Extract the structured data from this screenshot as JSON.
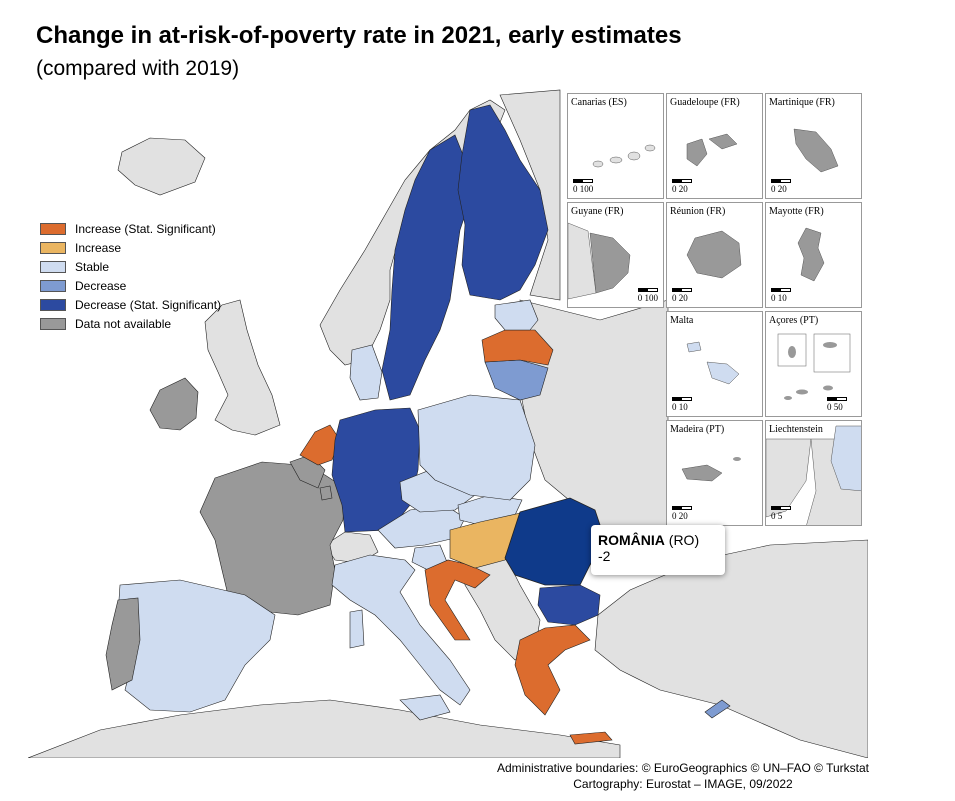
{
  "header": {
    "title": "Change in at-risk-of-poverty rate in 2021, early estimates",
    "subtitle": "(compared with 2019)"
  },
  "colors": {
    "sea": "#ffffff",
    "non_eu_land": "#e1e1e1",
    "increase_sig": "#dc6c2e",
    "increase": "#eab561",
    "stable": "#cfdcf0",
    "decrease": "#7e9bd1",
    "decrease_sig": "#2c4aa0",
    "highlight": "#0f3a8a",
    "not_available": "#999999",
    "border": "#222222"
  },
  "legend": {
    "items": [
      {
        "label": "Increase (Stat. Significant)",
        "color": "#dc6c2e"
      },
      {
        "label": "Increase",
        "color": "#eab561"
      },
      {
        "label": "Stable",
        "color": "#cfdcf0"
      },
      {
        "label": "Decrease",
        "color": "#7e9bd1"
      },
      {
        "label": "Decrease (Stat. Significant)",
        "color": "#2c4aa0"
      },
      {
        "label": "Data not available",
        "color": "#999999"
      }
    ]
  },
  "insets": [
    {
      "label": "Canarias (ES)",
      "scale": "0  100"
    },
    {
      "label": "Guadeloupe (FR)",
      "scale": "0   20"
    },
    {
      "label": "Martinique (FR)",
      "scale": "0   20"
    },
    {
      "label": "Guyane (FR)",
      "scale": "0  100"
    },
    {
      "label": "Réunion (FR)",
      "scale": "0   20"
    },
    {
      "label": "Mayotte (FR)",
      "scale": "0   10"
    },
    {
      "label": "Malta",
      "scale": "0   10"
    },
    {
      "label": "Açores (PT)",
      "scale": "0   50"
    },
    {
      "label": "Madeira (PT)",
      "scale": "0   20"
    },
    {
      "label": "Liechtenstein",
      "scale": "0   5"
    }
  ],
  "tooltip": {
    "country": "ROMÂNIA",
    "code": "(RO)",
    "value": "-2"
  },
  "credits": {
    "line1": "Administrative boundaries: © EuroGeographics © UN–FAO © Turkstat",
    "line2": "Cartography: Eurostat – IMAGE, 09/2022"
  },
  "countries": [
    {
      "name": "Sweden",
      "category": "decrease_sig"
    },
    {
      "name": "Finland",
      "category": "decrease_sig"
    },
    {
      "name": "Germany",
      "category": "decrease_sig"
    },
    {
      "name": "Romania",
      "category": "decrease_sig"
    },
    {
      "name": "Bulgaria",
      "category": "decrease_sig"
    },
    {
      "name": "Latvia",
      "category": "increase_sig"
    },
    {
      "name": "Netherlands",
      "category": "increase_sig"
    },
    {
      "name": "Croatia",
      "category": "increase_sig"
    },
    {
      "name": "Greece",
      "category": "increase_sig"
    },
    {
      "name": "Hungary",
      "category": "increase"
    },
    {
      "name": "Lithuania",
      "category": "decrease"
    },
    {
      "name": "Cyprus",
      "category": "decrease"
    },
    {
      "name": "Ireland",
      "category": "not_available"
    },
    {
      "name": "France",
      "category": "not_available"
    },
    {
      "name": "Portugal",
      "category": "not_available"
    },
    {
      "name": "Luxembourg",
      "category": "not_available"
    },
    {
      "name": "Belgium",
      "category": "not_available"
    },
    {
      "name": "Spain",
      "category": "stable"
    },
    {
      "name": "Italy",
      "category": "stable"
    },
    {
      "name": "Poland",
      "category": "stable"
    },
    {
      "name": "Denmark",
      "category": "stable"
    },
    {
      "name": "Estonia",
      "category": "stable"
    },
    {
      "name": "Czechia",
      "category": "stable"
    },
    {
      "name": "Slovakia",
      "category": "stable"
    },
    {
      "name": "Austria",
      "category": "stable"
    },
    {
      "name": "Slovenia",
      "category": "stable"
    },
    {
      "name": "Malta",
      "category": "stable"
    },
    {
      "name": "Liechtenstein",
      "category": "stable"
    }
  ]
}
